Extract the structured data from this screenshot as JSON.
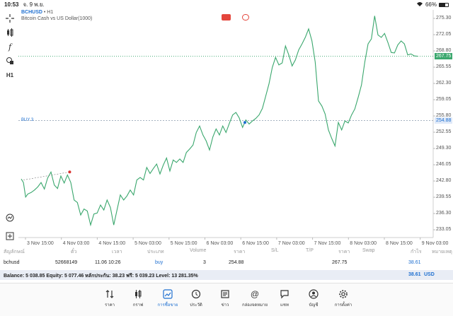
{
  "status": {
    "time": "10:53",
    "date": "จ. 9 พ.ย.",
    "battery": "66%"
  },
  "chart": {
    "symbol": "BCHUSD",
    "timeframe": "• H1",
    "description": "Bitcoin Cash vs US Dollar(1000)",
    "current_price": "267.75",
    "buy_label": "BUY 3",
    "buy_price": "254.88",
    "y_ticks": [
      "275.30",
      "272.05",
      "268.80",
      "265.55",
      "262.30",
      "259.05",
      "255.80",
      "252.55",
      "249.30",
      "246.05",
      "242.80",
      "239.55",
      "236.30",
      "233.05"
    ],
    "x_ticks": [
      "3 Nov 15:00",
      "4 Nov 03:00",
      "4 Nov 15:00",
      "5 Nov 03:00",
      "5 Nov 15:00",
      "6 Nov 03:00",
      "6 Nov 15:00",
      "7 Nov 03:00",
      "7 Nov 15:00",
      "8 Nov 03:00",
      "8 Nov 15:00",
      "9 Nov 03:00"
    ],
    "colors": {
      "line": "#3aa76d",
      "buy": "#1e6fd0",
      "price_bg": "#3aa76d",
      "marker_red": "#d9322e"
    }
  },
  "table": {
    "headers": [
      "สัญลักษณ์",
      "ตั๋ว",
      "เวลา",
      "ประเภท",
      "Volume",
      "ราคา",
      "S/L",
      "T/P",
      "ราคา",
      "Swap",
      "กำไร",
      "หมายเหตุ"
    ],
    "row": {
      "symbol": "bchusd",
      "ticket": "52668149",
      "time": "11.06 10:26",
      "type": "buy",
      "volume": "3",
      "price": "254.88",
      "current": "267.75",
      "profit": "38.61"
    }
  },
  "balance": {
    "text": "Balance: 5 038.85 Equity: 5 077.46 หลักประกัน: 38.23 ฟรี: 5 039.23 Level: 13 281.35%",
    "value": "38.61",
    "currency": "USD"
  },
  "tabs": [
    {
      "label": "ราคา",
      "icon": "arrows-updown-icon"
    },
    {
      "label": "กราฟ",
      "icon": "candles-icon"
    },
    {
      "label": "การซื้อขาย",
      "icon": "trade-chart-icon",
      "active": true
    },
    {
      "label": "ประวัติ",
      "icon": "history-icon"
    },
    {
      "label": "ข่าว",
      "icon": "news-icon"
    },
    {
      "label": "กล่องจดหมาย",
      "icon": "mail-at-icon"
    },
    {
      "label": "แชท",
      "icon": "chat-icon"
    },
    {
      "label": "บัญชี",
      "icon": "account-icon"
    },
    {
      "label": "การตั้งค่า",
      "icon": "settings-icon"
    }
  ],
  "chart_data": {
    "type": "line",
    "x": [
      "3 Nov 15:00",
      "4 Nov 03:00",
      "4 Nov 15:00",
      "5 Nov 03:00",
      "5 Nov 15:00",
      "6 Nov 03:00",
      "6 Nov 15:00",
      "7 Nov 03:00",
      "7 Nov 15:00",
      "8 Nov 03:00",
      "8 Nov 15:00",
      "9 Nov 03:00"
    ],
    "values": [
      240.5,
      242.5,
      234.0,
      243.0,
      246.5,
      252.5,
      256.0,
      267.5,
      250.0,
      257.0,
      272.5,
      267.75
    ],
    "ylim": [
      231.5,
      277.0
    ]
  }
}
